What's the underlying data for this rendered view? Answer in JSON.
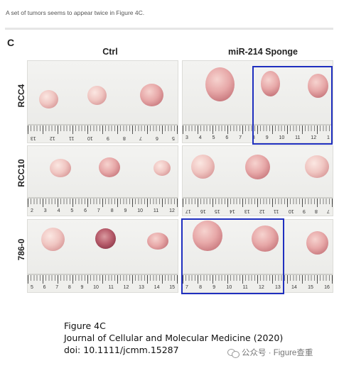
{
  "note": "A set of tumors seems to appear twice in Figure 4C.",
  "figure": {
    "panel_letter": "C",
    "col_labels": {
      "ctrl": "Ctrl",
      "sponge": "miR-214 Sponge"
    },
    "row_labels": [
      "RCC4",
      "RCC10",
      "786-0"
    ],
    "rulers": {
      "r1_ctrl": [
        "13",
        "12",
        "11",
        "10",
        "9",
        "8",
        "7",
        "6",
        "5"
      ],
      "r1_sponge": [
        "3",
        "4",
        "5",
        "6",
        "7",
        "8",
        "9",
        "10",
        "11",
        "12",
        "1"
      ],
      "r2_ctrl": [
        "2",
        "3",
        "4",
        "5",
        "6",
        "7",
        "8",
        "9",
        "10",
        "11",
        "12"
      ],
      "r2_sponge": [
        "17",
        "16",
        "15",
        "14",
        "13",
        "12",
        "11",
        "10",
        "9",
        "8",
        "7"
      ],
      "r3_ctrl": [
        "5",
        "6",
        "7",
        "8",
        "9",
        "10",
        "11",
        "12",
        "13",
        "14",
        "15"
      ],
      "r3_sponge": [
        "7",
        "8",
        "9",
        "10",
        "11",
        "12",
        "13",
        "14",
        "15",
        "16"
      ]
    },
    "highlight_color": "#1f2fbf"
  },
  "caption": {
    "line1": "Figure 4C",
    "line2": "Journal of Cellular and Molecular Medicine (2020)",
    "line3": "doi: 10.1111/jcmm.15287"
  },
  "watermark": {
    "text": "公众号 · Figure查重",
    "icon": "wechat-icon"
  }
}
